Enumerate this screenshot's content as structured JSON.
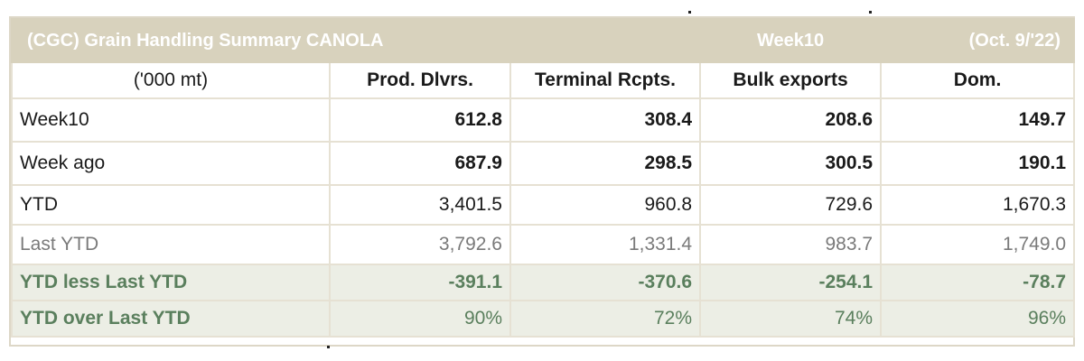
{
  "title": {
    "left": "(CGC) Grain Handling Summary CANOLA",
    "week": "Week10",
    "date": "(Oct. 9/'22)"
  },
  "headers": [
    "('000 mt)",
    "Prod. Dlvrs.",
    "Terminal Rcpts.",
    "Bulk exports",
    "Dom."
  ],
  "rows": [
    {
      "label": "Week10",
      "values": [
        "612.8",
        "308.4",
        "208.6",
        "149.7"
      ]
    },
    {
      "label": "Week ago",
      "values": [
        "687.9",
        "298.5",
        "300.5",
        "190.1"
      ]
    },
    {
      "label": "YTD",
      "values": [
        "3,401.5",
        "960.8",
        "729.6",
        "1,670.3"
      ]
    },
    {
      "label": "Last YTD",
      "values": [
        "3,792.6",
        "1,331.4",
        "983.7",
        "1,749.0"
      ]
    },
    {
      "label": "YTD less Last YTD",
      "values": [
        "-391.1",
        "-370.6",
        "-254.1",
        "-78.7"
      ]
    },
    {
      "label": "YTD over Last YTD",
      "values": [
        "90%",
        "72%",
        "74%",
        "96%"
      ]
    }
  ],
  "colors": {
    "title_bg": "#d8d2bd",
    "border": "#e6e1d3",
    "highlight_bg": "#eceee5",
    "highlight_text": "#5a7f5d",
    "muted_text": "#7a7a7a"
  }
}
